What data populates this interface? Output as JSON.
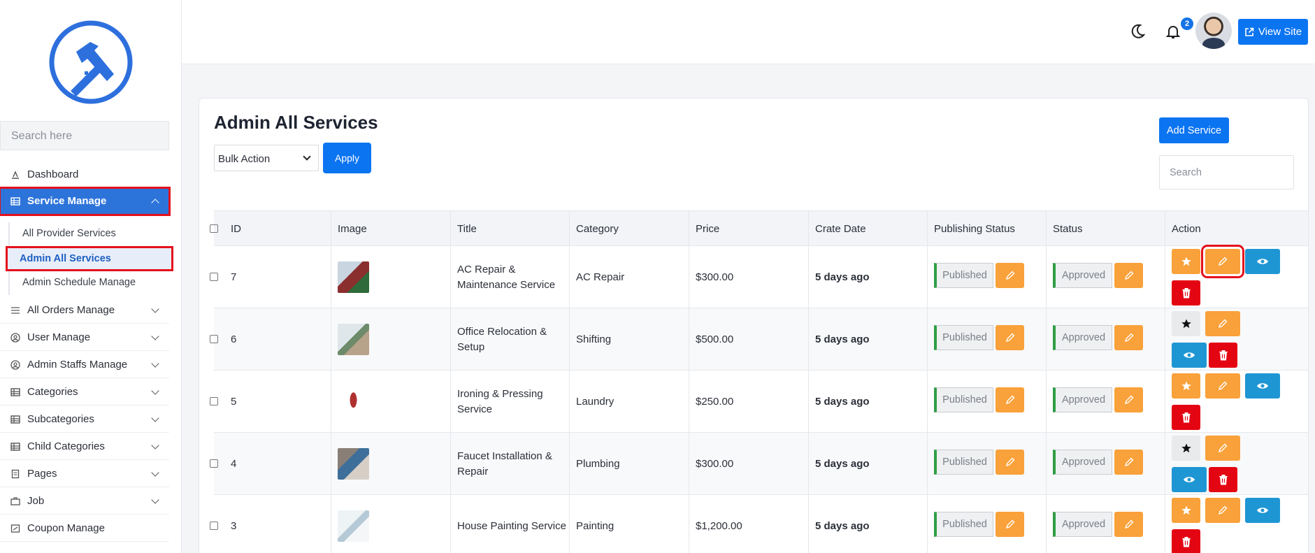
{
  "sidebar": {
    "search_placeholder": "Search here",
    "items": [
      {
        "label": "Dashboard",
        "icon": "dashboard-icon"
      },
      {
        "label": "Service Manage",
        "icon": "table-icon",
        "expanded": true
      },
      {
        "label": "All Orders Manage",
        "icon": "list-icon"
      },
      {
        "label": "User Manage",
        "icon": "user-circle-icon"
      },
      {
        "label": "Admin Staffs Manage",
        "icon": "user-circle-icon"
      },
      {
        "label": "Categories",
        "icon": "table-icon"
      },
      {
        "label": "Subcategories",
        "icon": "table-icon"
      },
      {
        "label": "Child Categories",
        "icon": "table-icon"
      },
      {
        "label": "Pages",
        "icon": "page-icon"
      },
      {
        "label": "Job",
        "icon": "job-icon"
      },
      {
        "label": "Coupon Manage",
        "icon": "coupon-icon"
      }
    ],
    "sub_items": [
      {
        "label": "All Provider Services"
      },
      {
        "label": "Admin All Services",
        "active": true
      },
      {
        "label": "Admin Schedule Manage"
      }
    ]
  },
  "header": {
    "notification_count": "2",
    "view_site_label": "View Site"
  },
  "main": {
    "title": "Admin All Services",
    "bulk_action": "Bulk Action",
    "apply_label": "Apply",
    "add_service_label": "Add Service",
    "search_placeholder": "Search",
    "columns": [
      "ID",
      "Image",
      "Title",
      "Category",
      "Price",
      "Crate Date",
      "Publishing Status",
      "Status",
      "Action"
    ],
    "rows": [
      {
        "id": "7",
        "title": "AC Repair & Maintenance Service",
        "category": "AC Repair",
        "price": "$300.00",
        "date": "5 days ago",
        "publishing": "Published",
        "status": "Approved",
        "featured": true
      },
      {
        "id": "6",
        "title": "Office Relocation & Setup",
        "category": "Shifting",
        "price": "$500.00",
        "date": "5 days ago",
        "publishing": "Published",
        "status": "Approved",
        "featured": false
      },
      {
        "id": "5",
        "title": "Ironing & Pressing Service",
        "category": "Laundry",
        "price": "$250.00",
        "date": "5 days ago",
        "publishing": "Published",
        "status": "Approved",
        "featured": true
      },
      {
        "id": "4",
        "title": "Faucet Installation & Repair",
        "category": "Plumbing",
        "price": "$300.00",
        "date": "5 days ago",
        "publishing": "Published",
        "status": "Approved",
        "featured": false
      },
      {
        "id": "3",
        "title": "House Painting Service",
        "category": "Painting",
        "price": "$1,200.00",
        "date": "5 days ago",
        "publishing": "Published",
        "status": "Approved",
        "featured": true
      }
    ]
  },
  "colors": {
    "primary": "#0b74f1",
    "sidebar_active": "#2d74da",
    "warning": "#f9a13a",
    "info": "#1f96d4",
    "danger": "#e40512",
    "highlight": "#e5111b"
  }
}
